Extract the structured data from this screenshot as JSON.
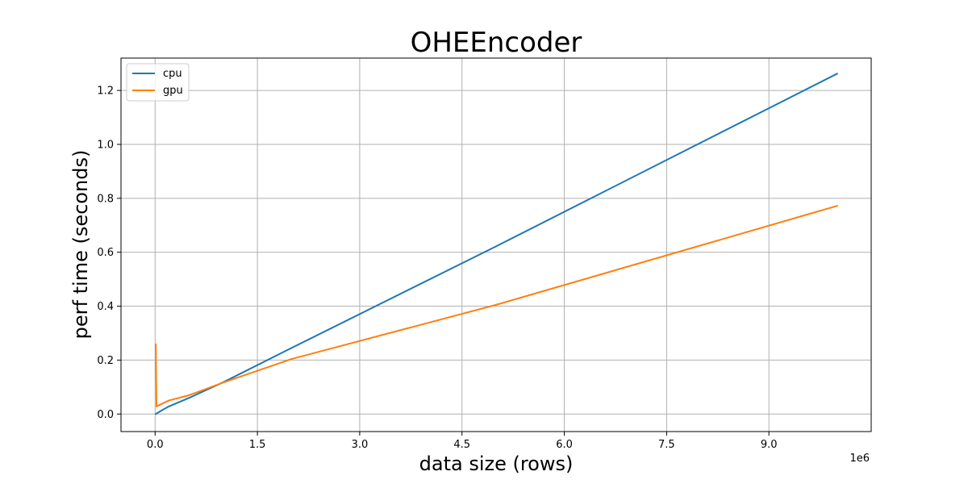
{
  "chart_data": {
    "type": "line",
    "title": "OHEEncoder",
    "xlabel": "data size (rows)",
    "ylabel": "perf time (seconds)",
    "x_offset_text": "1e6",
    "xlim": [
      -0.5,
      10.5
    ],
    "ylim": [
      -0.065,
      1.32
    ],
    "x_ticks": [
      0.0,
      1.5,
      3.0,
      4.5,
      6.0,
      7.5,
      9.0
    ],
    "x_tick_labels": [
      "0.0",
      "1.5",
      "3.0",
      "4.5",
      "6.0",
      "7.5",
      "9.0"
    ],
    "y_ticks": [
      0.0,
      0.2,
      0.4,
      0.6,
      0.8,
      1.0,
      1.2
    ],
    "y_tick_labels": [
      "0.0",
      "0.2",
      "0.4",
      "0.6",
      "0.8",
      "1.0",
      "1.2"
    ],
    "grid": true,
    "legend": "top-left",
    "series": [
      {
        "name": "cpu",
        "color": "#1f77b4",
        "x": [
          0.01,
          0.1,
          0.2,
          0.5,
          1.0,
          2.0,
          5.0,
          10.0
        ],
        "y": [
          0.0,
          0.014,
          0.028,
          0.06,
          0.118,
          0.245,
          0.622,
          1.262
        ]
      },
      {
        "name": "gpu",
        "color": "#ff7f0e",
        "x": [
          0.01,
          0.02,
          0.1,
          0.2,
          0.5,
          1.0,
          2.0,
          5.0,
          10.0
        ],
        "y": [
          0.258,
          0.028,
          0.038,
          0.05,
          0.07,
          0.117,
          0.204,
          0.405,
          0.772
        ]
      }
    ]
  }
}
